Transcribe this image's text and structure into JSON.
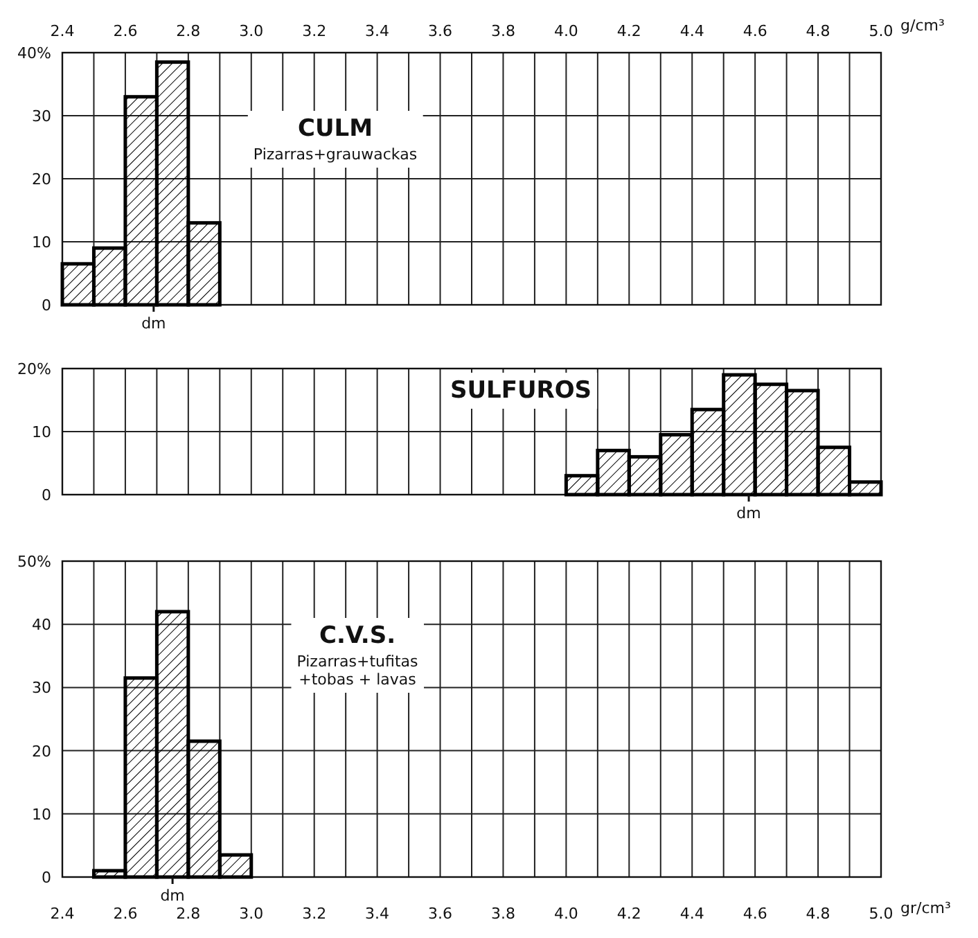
{
  "chart_data": [
    {
      "type": "histogram",
      "title": "CULM",
      "subtitle": "Pizarras+grauwackas",
      "color": "#000000",
      "bins": [
        2.4,
        2.5,
        2.6,
        2.7,
        2.8,
        2.9
      ],
      "values": [
        6.5,
        9,
        33,
        38.5,
        13
      ],
      "xlim": [
        2.4,
        5.0
      ],
      "xlabel": "g/cm³",
      "xticks": [
        2.4,
        {
          "value": 2.5,
          "label": null
        },
        2.6,
        {
          "value": 2.7,
          "label": null
        },
        2.8,
        {
          "value": 2.9,
          "label": null
        },
        {
          "value": 3,
          "label": "3.0"
        },
        {
          "value": 3.1,
          "label": null
        },
        3.2,
        {
          "value": 3.3,
          "label": null
        },
        3.4,
        {
          "value": 3.5,
          "label": null
        },
        3.6,
        {
          "value": 3.7,
          "label": null
        },
        3.8,
        {
          "value": 3.9,
          "label": null
        },
        {
          "value": 4,
          "label": "4.0"
        },
        {
          "value": 4.1,
          "label": null
        },
        4.2,
        {
          "value": 4.3,
          "label": null
        },
        4.4,
        {
          "value": 4.5,
          "label": null
        },
        4.6,
        {
          "value": 4.7,
          "label": null
        },
        4.8,
        {
          "value": 4.9,
          "label": null
        },
        {
          "value": 5,
          "label": "5.0"
        }
      ],
      "ylim": [
        0,
        40
      ],
      "yticks": [
        0,
        10,
        20,
        30,
        {
          "value": 40,
          "label": "40%"
        }
      ],
      "grid": true,
      "annotations": [
        {
          "text": "dm",
          "x": 2.69,
          "y": 0
        }
      ]
    },
    {
      "type": "histogram",
      "title": "SULFUROS",
      "color": "#000000",
      "bins": [
        4.0,
        4.1,
        4.2,
        4.3,
        4.4,
        4.5,
        4.6,
        4.7,
        4.8,
        4.9,
        5.0
      ],
      "values": [
        3,
        7,
        6,
        9.5,
        13.5,
        19,
        17.5,
        16.5,
        7.5,
        2
      ],
      "xlim": [
        2.4,
        5.0
      ],
      "tick_labels": "y",
      "xticks": [
        2.4,
        2.5,
        2.6,
        2.7,
        2.8,
        2.9,
        3.0,
        3.1,
        3.2,
        3.3,
        3.4,
        3.5,
        3.6,
        3.7,
        3.8,
        3.9,
        4.0,
        4.1,
        4.2,
        4.3,
        4.4,
        4.5,
        4.6,
        4.7,
        4.8,
        4.9,
        5.0
      ],
      "ylim": [
        0,
        20
      ],
      "yticks": [
        0,
        10,
        {
          "value": 20,
          "label": "20%"
        }
      ],
      "grid": true,
      "annotations": [
        {
          "text": "dm",
          "x": 4.58,
          "y": 0
        }
      ]
    },
    {
      "type": "histogram",
      "title": "C.V.S.",
      "subtitle": "Pizarras+tufitas\n+tobas + lavas",
      "color": "#000000",
      "bins": [
        2.5,
        2.6,
        2.7,
        2.8,
        2.9,
        3.0
      ],
      "values": [
        1,
        31.5,
        42,
        21.5,
        3.5
      ],
      "xlim": [
        2.4,
        5.0
      ],
      "xlabel": "gr/cm³",
      "xticks": [
        2.4,
        {
          "value": 2.5,
          "label": null
        },
        2.6,
        {
          "value": 2.7,
          "label": null
        },
        2.8,
        {
          "value": 2.9,
          "label": null
        },
        {
          "value": 3,
          "label": "3.0"
        },
        {
          "value": 3.1,
          "label": null
        },
        3.2,
        {
          "value": 3.3,
          "label": null
        },
        3.4,
        {
          "value": 3.5,
          "label": null
        },
        3.6,
        {
          "value": 3.7,
          "label": null
        },
        3.8,
        {
          "value": 3.9,
          "label": null
        },
        {
          "value": 4,
          "label": "4.0"
        },
        {
          "value": 4.1,
          "label": null
        },
        4.2,
        {
          "value": 4.3,
          "label": null
        },
        4.4,
        {
          "value": 4.5,
          "label": null
        },
        4.6,
        {
          "value": 4.7,
          "label": null
        },
        4.8,
        {
          "value": 4.9,
          "label": null
        },
        {
          "value": 5,
          "label": "5.0"
        }
      ],
      "ylim": [
        0,
        50
      ],
      "yticks": [
        0,
        10,
        20,
        30,
        40,
        {
          "value": 50,
          "label": "50%"
        }
      ],
      "grid": true,
      "annotations": [
        {
          "text": "dm",
          "x": 2.75,
          "y": 0
        }
      ]
    }
  ]
}
